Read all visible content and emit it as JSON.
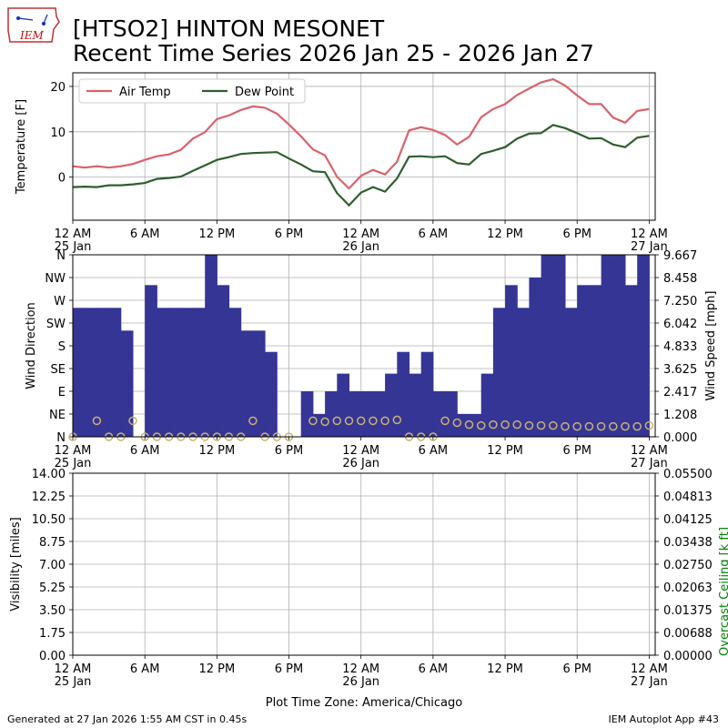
{
  "header": {
    "logo_text": "IEM",
    "title_line1": "[HTSO2] HINTON MESONET",
    "title_line2": "Recent Time Series 2026 Jan 25 - 2026 Jan 27"
  },
  "footer": {
    "generated": "Generated at 27 Jan 2026 1:55 AM CST in 0.45s",
    "app": "IEM Autoplot App #43",
    "timezone_label": "Plot Time Zone: America/Chicago"
  },
  "colors": {
    "air_temp": "#d9626a",
    "dew_point": "#2e5e2e",
    "wind_bar": "#353596",
    "wind_speed_marker": "#c8b46e",
    "ceiling_label": "#008000",
    "grid": "#b0b0b0"
  },
  "chart_data": [
    {
      "type": "line",
      "panel": "temperature",
      "x_unit": "hours since 12 AM 25 Jan",
      "xlim": [
        0,
        48.5
      ],
      "ylim": [
        -9.5,
        23
      ],
      "yticks": [
        0,
        10,
        20
      ],
      "ylabel": "Temperature [F]",
      "xticks": [
        {
          "x": 0,
          "label": "12 AM",
          "sub": "25 Jan"
        },
        {
          "x": 6,
          "label": "6 AM",
          "sub": ""
        },
        {
          "x": 12,
          "label": "12 PM",
          "sub": ""
        },
        {
          "x": 18,
          "label": "6 PM",
          "sub": ""
        },
        {
          "x": 24,
          "label": "12 AM",
          "sub": "26 Jan"
        },
        {
          "x": 30,
          "label": "6 AM",
          "sub": ""
        },
        {
          "x": 36,
          "label": "12 PM",
          "sub": ""
        },
        {
          "x": 42,
          "label": "6 PM",
          "sub": ""
        },
        {
          "x": 48,
          "label": "12 AM",
          "sub": "27 Jan"
        }
      ],
      "grid": true,
      "legend": "top-left",
      "x": [
        0,
        1,
        2,
        3,
        4,
        5,
        6,
        7,
        8,
        9,
        10,
        11,
        12,
        13,
        14,
        15,
        16,
        17,
        18,
        19,
        20,
        21,
        22,
        23,
        24,
        25,
        26,
        27,
        28,
        29,
        30,
        31,
        32,
        33,
        34,
        35,
        36,
        37,
        38,
        39,
        40,
        41,
        42,
        43,
        44,
        45,
        46,
        47,
        48
      ],
      "series": [
        {
          "name": "Air Temp",
          "values": [
            2.4,
            2.1,
            2.4,
            2.1,
            2.4,
            2.9,
            3.8,
            4.6,
            5.0,
            6.0,
            8.5,
            9.9,
            12.8,
            13.6,
            14.8,
            15.6,
            15.3,
            14.0,
            11.6,
            9.0,
            6.1,
            4.8,
            0.1,
            -2.5,
            0.3,
            1.6,
            0.6,
            3.4,
            10.3,
            11.0,
            10.4,
            9.3,
            7.2,
            8.9,
            13.2,
            15.0,
            16.1,
            18.1,
            19.5,
            20.9,
            21.6,
            20.2,
            18.0,
            16.1,
            16.1,
            13.1,
            12.0,
            14.6,
            15.0
          ]
        },
        {
          "name": "Dew Point",
          "values": [
            -2.2,
            -2.1,
            -2.2,
            -1.8,
            -1.8,
            -1.6,
            -1.3,
            -0.4,
            -0.2,
            0.1,
            1.4,
            2.6,
            3.8,
            4.4,
            5.1,
            5.3,
            5.4,
            5.5,
            4.1,
            2.8,
            1.3,
            1.1,
            -3.5,
            -6.2,
            -3.4,
            -2.2,
            -3.2,
            -0.3,
            4.5,
            4.6,
            4.4,
            4.6,
            3.1,
            2.8,
            5.1,
            5.8,
            6.6,
            8.5,
            9.6,
            9.7,
            11.5,
            10.8,
            9.7,
            8.5,
            8.6,
            7.2,
            6.6,
            8.7,
            9.1
          ]
        }
      ]
    },
    {
      "type": "bar",
      "panel": "wind",
      "x_unit": "hours since 12 AM 25 Jan",
      "xlim": [
        0,
        48.5
      ],
      "ylabel": "Wind Direction",
      "y2label": "Wind Speed [mph]",
      "direction_ticks": [
        "N",
        "NE",
        "E",
        "SE",
        "S",
        "SW",
        "W",
        "NW",
        "N"
      ],
      "direction_ylim": [
        0,
        360
      ],
      "speed_ylim": [
        0,
        9.667
      ],
      "speed_ticks": [
        "0.000",
        "1.208",
        "2.417",
        "3.625",
        "4.833",
        "6.042",
        "7.250",
        "8.458",
        "9.667"
      ],
      "grid": true,
      "direction_x": [
        1,
        2,
        3,
        4,
        5,
        7,
        8,
        9,
        10,
        11,
        12,
        13,
        14,
        15,
        16,
        17,
        20,
        21,
        22,
        23,
        24,
        25,
        26,
        27,
        28,
        29,
        30,
        31,
        32,
        33,
        34,
        35,
        36,
        37,
        38,
        39,
        40,
        41,
        42,
        43,
        44,
        45,
        46,
        47,
        48
      ],
      "direction_values": [
        255,
        255,
        255,
        255,
        210,
        300,
        255,
        255,
        255,
        255,
        360,
        300,
        255,
        210,
        210,
        168,
        90,
        45,
        90,
        125,
        90,
        90,
        90,
        125,
        168,
        125,
        168,
        90,
        90,
        45,
        45,
        125,
        255,
        300,
        255,
        315,
        360,
        360,
        255,
        300,
        300,
        360,
        360,
        300,
        360
      ],
      "speed_x": [
        0,
        2,
        3,
        4,
        5,
        6,
        7,
        8,
        9,
        10,
        11,
        12,
        13,
        14,
        15,
        16,
        17,
        18,
        20,
        21,
        22,
        23,
        24,
        25,
        26,
        27,
        28,
        29,
        30,
        31,
        32,
        33,
        34,
        35,
        36,
        37,
        38,
        39,
        40,
        41,
        42,
        43,
        44,
        45,
        46,
        47,
        48
      ],
      "speed_values": [
        0,
        0.85,
        0,
        0,
        0.85,
        0,
        0,
        0,
        0,
        0,
        0,
        0,
        0,
        0,
        0.85,
        0,
        0,
        0,
        0.85,
        0.8,
        0.85,
        0.85,
        0.85,
        0.85,
        0.85,
        0.9,
        0,
        0,
        0,
        0.85,
        0.75,
        0.65,
        0.6,
        0.65,
        0.65,
        0.65,
        0.6,
        0.6,
        0.6,
        0.55,
        0.55,
        0.55,
        0.55,
        0.55,
        0.55,
        0.55,
        0.6
      ]
    },
    {
      "type": "line",
      "panel": "visibility",
      "x_unit": "hours since 12 AM 25 Jan",
      "xlim": [
        0,
        48.5
      ],
      "ylabel": "Visibility [miles]",
      "y2label": "Overcast Ceiling [k ft]",
      "ylim": [
        0,
        14
      ],
      "yticks": [
        "0.00",
        "1.75",
        "3.50",
        "5.25",
        "7.00",
        "8.75",
        "10.50",
        "12.25",
        "14.00"
      ],
      "y2ticks": [
        "0.00000",
        "0.00688",
        "0.01375",
        "0.02063",
        "0.02750",
        "0.03438",
        "0.04125",
        "0.04813",
        "0.05500"
      ],
      "grid": true,
      "series": []
    }
  ]
}
